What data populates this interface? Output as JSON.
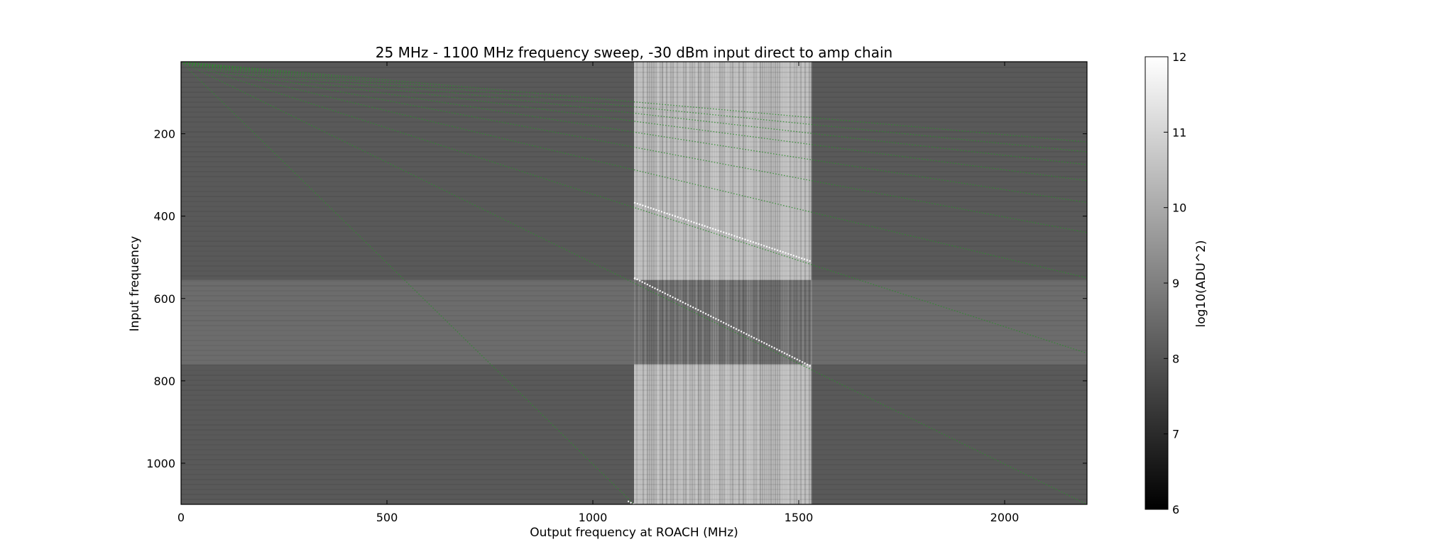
{
  "chart_data": {
    "type": "heatmap",
    "title": "25 MHz - 1100 MHz frequency sweep, -30 dBm input direct to amp chain",
    "xlabel": "Output frequency at ROACH (MHz)",
    "ylabel": "Input frequency",
    "xlim": [
      0,
      2200
    ],
    "ylim": [
      1100,
      25
    ],
    "y_inverted": true,
    "x_ticks": [
      0,
      500,
      1000,
      1500,
      2000
    ],
    "y_ticks": [
      200,
      400,
      600,
      800,
      1000
    ],
    "colorbar": {
      "label": "log10(ADU^2)",
      "range": [
        6,
        12
      ],
      "ticks": [
        6,
        7,
        8,
        9,
        10,
        11,
        12
      ],
      "colormap": "gray"
    },
    "background_level": 8.1,
    "regions": [
      {
        "name": "amplified band",
        "x": [
          1100,
          1530
        ],
        "y": [
          25,
          1100
        ],
        "level": 10.6
      },
      {
        "name": "input harmonics band",
        "x": [
          0,
          2200
        ],
        "y": [
          555,
          760
        ],
        "level": 8.6
      }
    ],
    "traces": [
      {
        "name": "fundamental",
        "color": "#ffffff",
        "points": [
          [
            1100,
            550
          ],
          [
            1530,
            765
          ]
        ]
      },
      {
        "name": "harmonic",
        "color": "#ffffff",
        "points": [
          [
            1100,
            367
          ],
          [
            1530,
            510
          ]
        ]
      },
      {
        "name": "alias",
        "color": "#ffffff",
        "points": [
          [
            1100,
            1100
          ],
          [
            1085,
            1092
          ]
        ]
      }
    ],
    "model_lines": [
      {
        "from": [
          0,
          25
        ],
        "to": [
          1100,
          1100
        ]
      },
      {
        "from": [
          0,
          25
        ],
        "to": [
          2200,
          1100
        ]
      },
      {
        "from": [
          0,
          25
        ],
        "to": [
          2200,
          733
        ]
      },
      {
        "from": [
          0,
          25
        ],
        "to": [
          2200,
          550
        ]
      },
      {
        "from": [
          0,
          25
        ],
        "to": [
          2200,
          440
        ]
      },
      {
        "from": [
          0,
          25
        ],
        "to": [
          2200,
          367
        ]
      },
      {
        "from": [
          0,
          25
        ],
        "to": [
          2200,
          314
        ]
      },
      {
        "from": [
          0,
          25
        ],
        "to": [
          2200,
          275
        ]
      },
      {
        "from": [
          0,
          25
        ],
        "to": [
          2200,
          244
        ]
      },
      {
        "from": [
          0,
          25
        ],
        "to": [
          2200,
          220
        ]
      }
    ]
  }
}
